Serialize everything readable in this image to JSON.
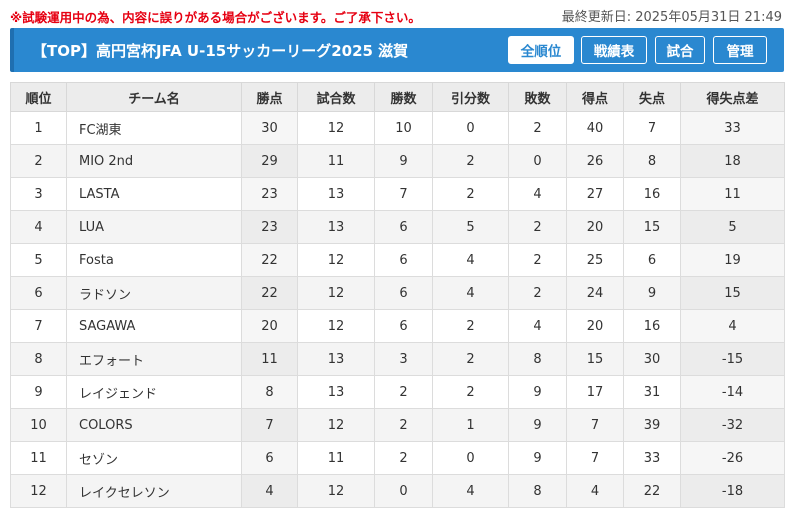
{
  "notice": "※試験運用中の為、内容に誤りがある場合がございます。ご了承下さい。",
  "updated": "最終更新日: 2025年05月31日 21:49",
  "header": {
    "title": "【TOP】高円宮杯JFA U-15サッカーリーグ2025 滋賀",
    "nav": [
      "全順位",
      "戦績表",
      "試合",
      "管理"
    ]
  },
  "table": {
    "columns": [
      "順位",
      "チーム名",
      "勝点",
      "試合数",
      "勝数",
      "引分数",
      "敗数",
      "得点",
      "失点",
      "得失点差"
    ],
    "rows": [
      [
        "1",
        "FC湖東",
        "30",
        "12",
        "10",
        "0",
        "2",
        "40",
        "7",
        "33"
      ],
      [
        "2",
        "MIO 2nd",
        "29",
        "11",
        "9",
        "2",
        "0",
        "26",
        "8",
        "18"
      ],
      [
        "3",
        "LASTA",
        "23",
        "13",
        "7",
        "2",
        "4",
        "27",
        "16",
        "11"
      ],
      [
        "4",
        "LUA",
        "23",
        "13",
        "6",
        "5",
        "2",
        "20",
        "15",
        "5"
      ],
      [
        "5",
        "Fosta",
        "22",
        "12",
        "6",
        "4",
        "2",
        "25",
        "6",
        "19"
      ],
      [
        "6",
        "ラドソン",
        "22",
        "12",
        "6",
        "4",
        "2",
        "24",
        "9",
        "15"
      ],
      [
        "7",
        "SAGAWA",
        "20",
        "12",
        "6",
        "2",
        "4",
        "20",
        "16",
        "4"
      ],
      [
        "8",
        "エフォート",
        "11",
        "13",
        "3",
        "2",
        "8",
        "15",
        "30",
        "-15"
      ],
      [
        "9",
        "レイジェンド",
        "8",
        "13",
        "2",
        "2",
        "9",
        "17",
        "31",
        "-14"
      ],
      [
        "10",
        "COLORS",
        "7",
        "12",
        "2",
        "1",
        "9",
        "7",
        "39",
        "-32"
      ],
      [
        "11",
        "セゾン",
        "6",
        "11",
        "2",
        "0",
        "9",
        "7",
        "33",
        "-26"
      ],
      [
        "12",
        "レイクセレソン",
        "4",
        "12",
        "0",
        "4",
        "8",
        "4",
        "22",
        "-18"
      ]
    ]
  }
}
